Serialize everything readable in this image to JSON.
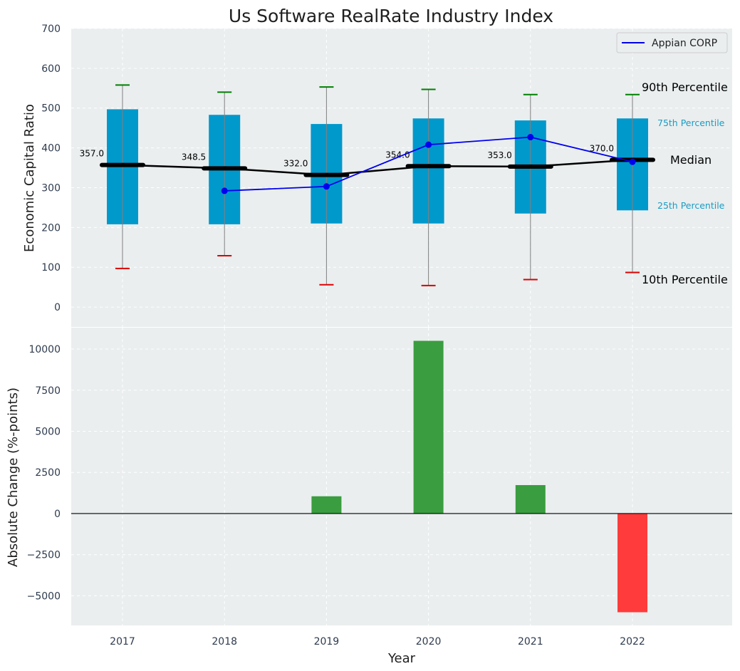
{
  "title": "Us Software RealRate Industry Index",
  "top_panel": {
    "ylabel": "Economic Capital Ratio",
    "ylim": [
      -50,
      700
    ],
    "yticks": [
      0,
      100,
      200,
      300,
      400,
      500,
      600,
      700
    ],
    "legend": {
      "label": "Appian CORP",
      "color": "#0000ee",
      "placement": "upper-right"
    },
    "annotations": {
      "p90": "90th Percentile",
      "p75": "75th Percentile",
      "median": "Median",
      "p25": "25th Percentile",
      "p10": "10th Percentile"
    }
  },
  "bottom_panel": {
    "ylabel": "Absolute Change (%-points)",
    "xlabel": "Year",
    "ylim": [
      -6800,
      11300
    ],
    "yticks": [
      -5000,
      -2500,
      0,
      2500,
      5000,
      7500,
      10000
    ],
    "ytick_labels": [
      "−5000",
      "−2500",
      "0",
      "2500",
      "5000",
      "7500",
      "10000"
    ]
  },
  "colors": {
    "panel_bg": "#eaeeef",
    "box": "#0099cc",
    "median_line": "#000000",
    "company_line": "#0000ee",
    "whisker": "#808080",
    "p90_cap": "#008000",
    "p10_cap": "#dd0000",
    "bar_positive": "#3a9d3f",
    "bar_negative": "#ff3b3b"
  },
  "chart_data": [
    {
      "type": "box",
      "title": "Us Software RealRate Industry Index",
      "ylabel": "Economic Capital Ratio",
      "ylim": [
        -50,
        700
      ],
      "categories": [
        "2017",
        "2018",
        "2019",
        "2020",
        "2021",
        "2022"
      ],
      "p10": [
        97,
        129,
        56,
        54,
        69,
        87
      ],
      "p25": [
        208,
        208,
        210,
        210,
        235,
        243
      ],
      "median": [
        357.0,
        348.5,
        332.0,
        354.0,
        353.0,
        370.0
      ],
      "median_labels": [
        "357.0",
        "348.5",
        "332.0",
        "354.0",
        "353.0",
        "370.0"
      ],
      "p75": [
        497,
        483,
        460,
        474,
        469,
        474
      ],
      "p90": [
        558,
        540,
        553,
        547,
        534,
        534
      ],
      "series": [
        {
          "name": "Appian CORP",
          "values": [
            null,
            292,
            303,
            408,
            427,
            365
          ]
        }
      ],
      "grid": true,
      "legend": "upper-right"
    },
    {
      "type": "bar",
      "xlabel": "Year",
      "ylabel": "Absolute Change (%-points)",
      "categories": [
        "2017",
        "2018",
        "2019",
        "2020",
        "2021",
        "2022"
      ],
      "values": [
        0,
        0,
        1050,
        10500,
        1730,
        -6000
      ],
      "ylim": [
        -6800,
        11300
      ],
      "grid": true
    }
  ]
}
